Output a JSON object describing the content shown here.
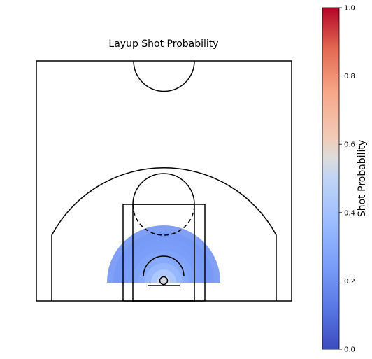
{
  "chart_data": {
    "type": "heatmap",
    "title": "Layup Shot Probability",
    "colorbar": {
      "label": "Shot Probability",
      "colormap": "coolwarm",
      "range": [
        0.0,
        1.0
      ],
      "ticks": [
        "0.0",
        "0.2",
        "0.4",
        "0.6",
        "0.8",
        "1.0"
      ],
      "placement": "right"
    },
    "heat_region": {
      "shape": "semicircle around basket",
      "max_distance_ft": 8.5,
      "values": [
        {
          "distance_ft": 0.5,
          "probability": 0.55
        },
        {
          "distance_ft": 1.5,
          "probability": 0.45
        },
        {
          "distance_ft": 2.5,
          "probability": 0.36
        },
        {
          "distance_ft": 3.5,
          "probability": 0.3
        },
        {
          "distance_ft": 4.5,
          "probability": 0.27
        },
        {
          "distance_ft": 5.5,
          "probability": 0.25
        },
        {
          "distance_ft": 6.5,
          "probability": 0.24
        },
        {
          "distance_ft": 7.5,
          "probability": 0.23
        },
        {
          "distance_ft": 8.5,
          "probability": 0.22
        }
      ]
    },
    "grid": false
  },
  "colors": {
    "court_lines": "#000000",
    "background": "#ffffff"
  }
}
